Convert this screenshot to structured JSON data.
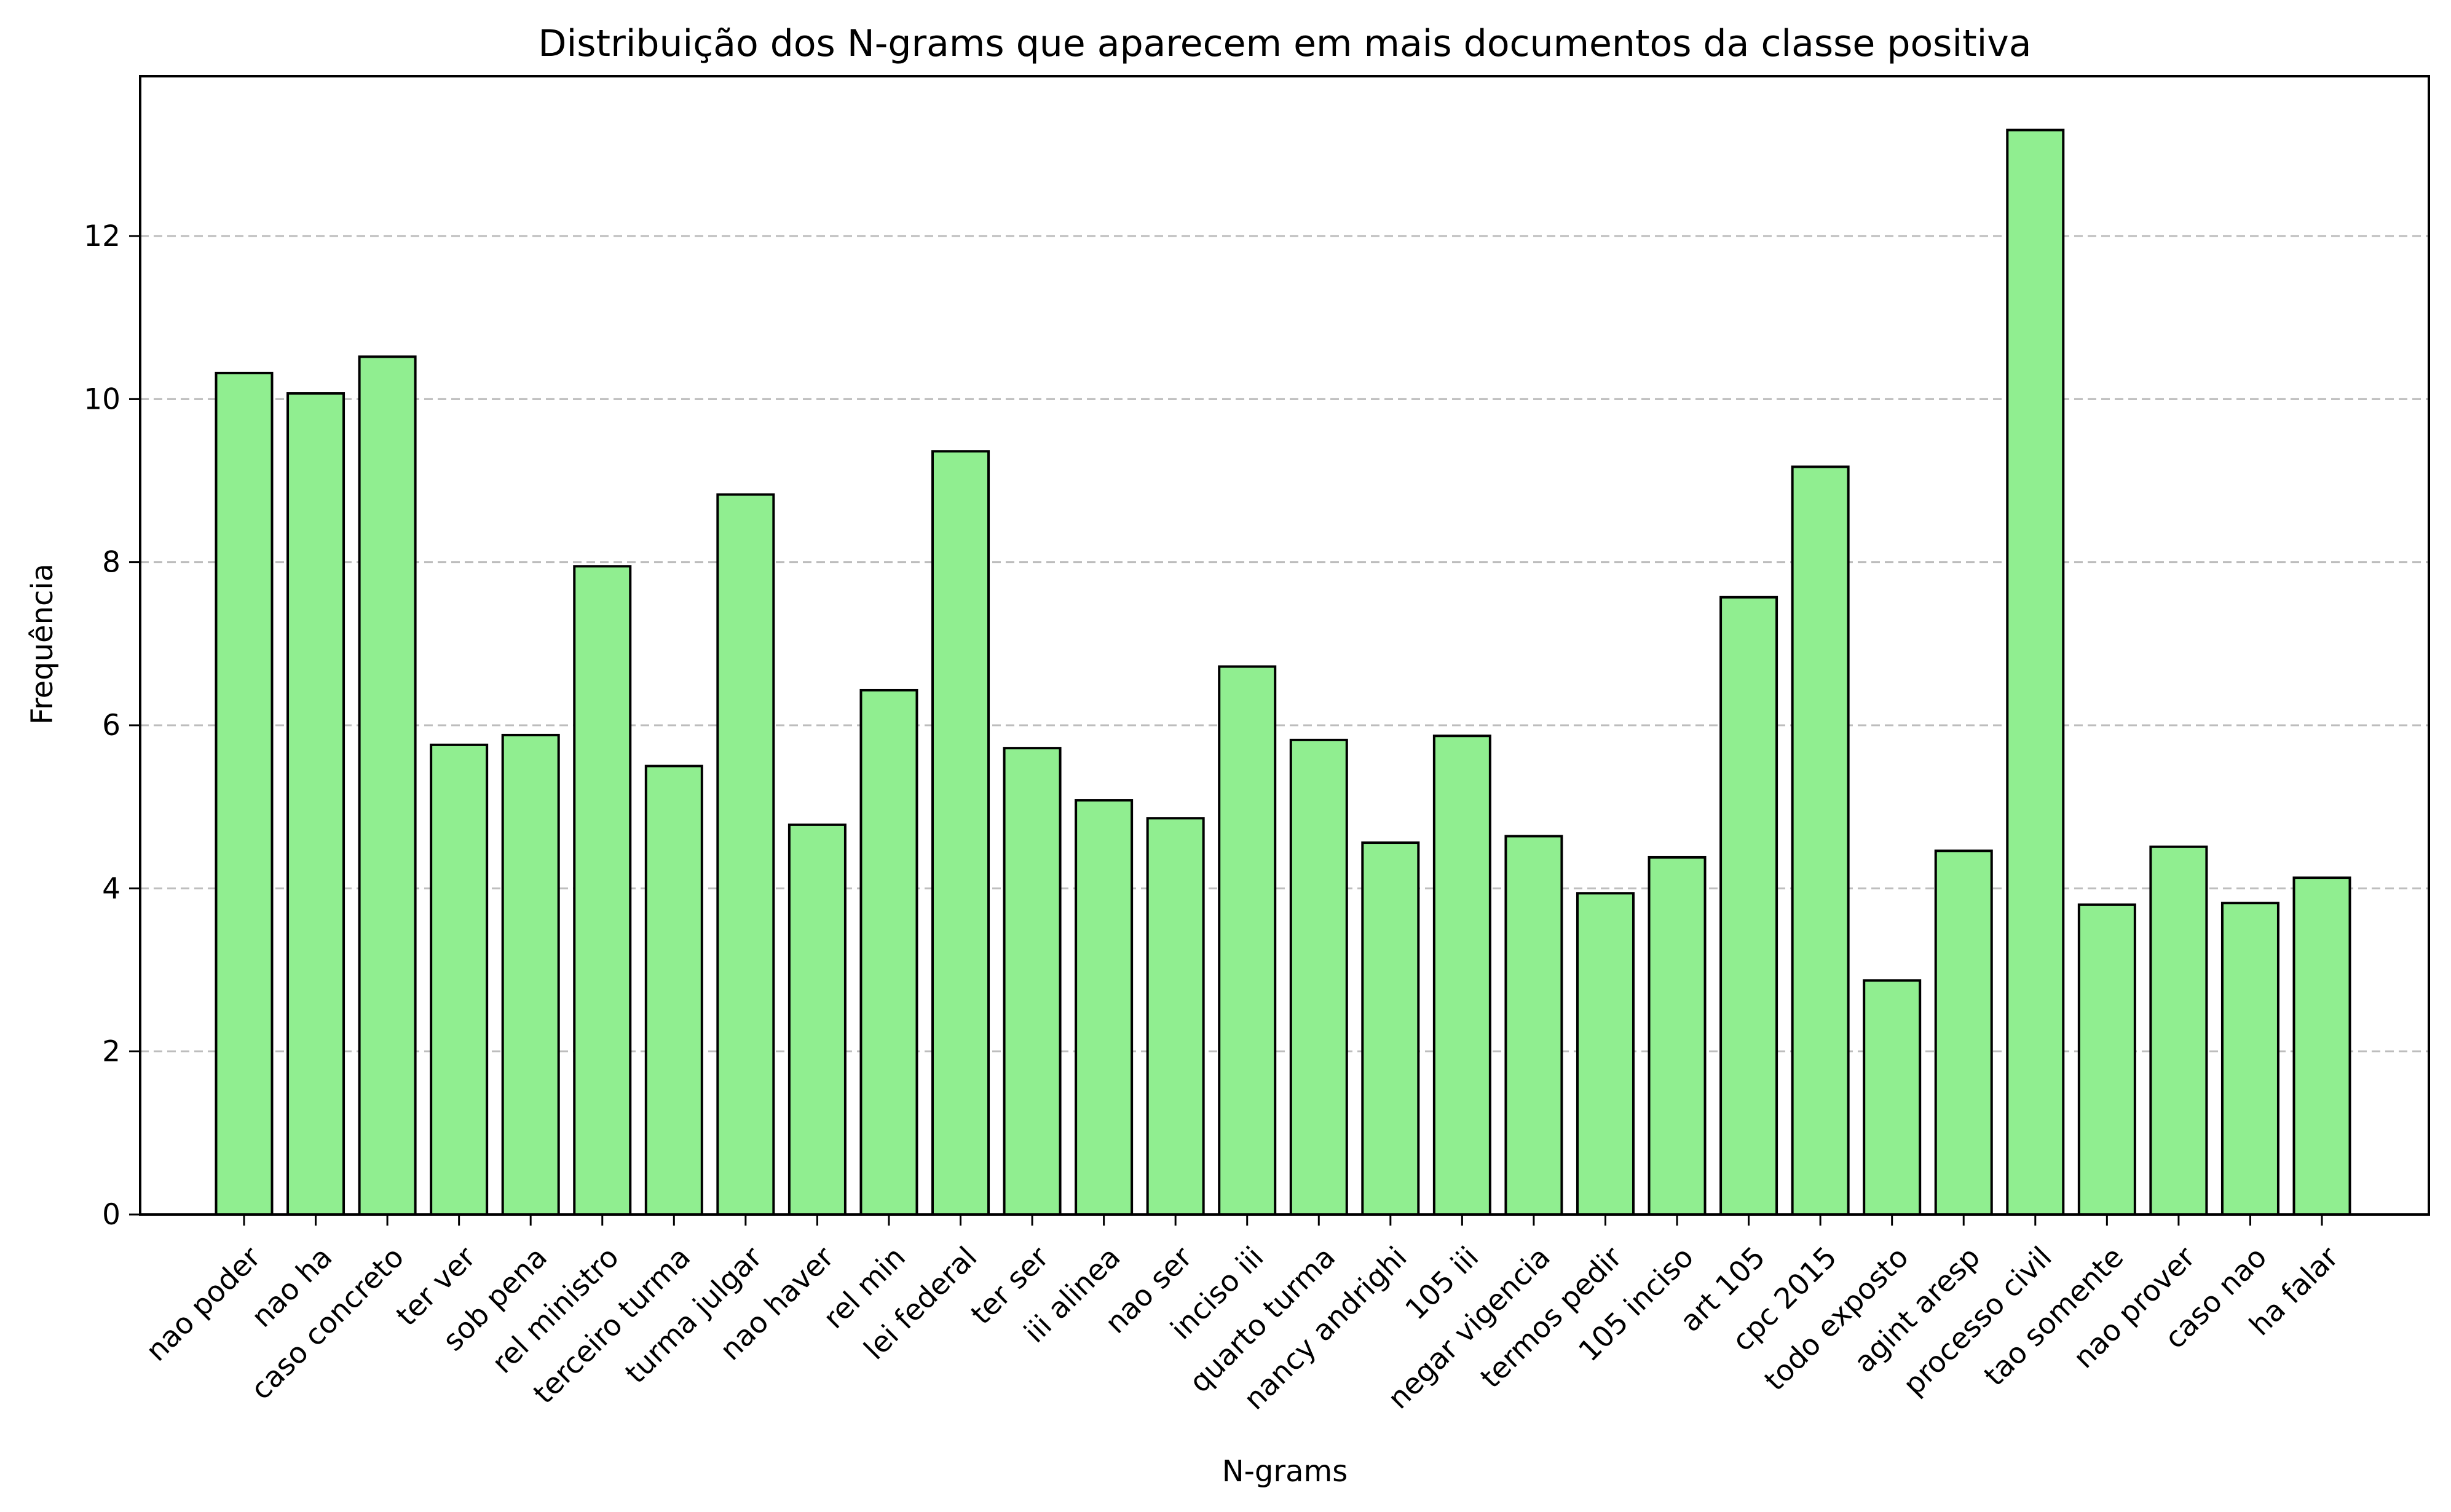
{
  "chart_data": {
    "type": "bar",
    "title": "Distribuição dos N-grams que aparecem em mais documentos da classe positiva",
    "xlabel": "N-grams",
    "ylabel": "Frequência",
    "categories": [
      "nao poder",
      "nao ha",
      "caso concreto",
      "ter ver",
      "sob pena",
      "rel ministro",
      "terceiro turma",
      "turma julgar",
      "nao haver",
      "rel min",
      "lei federal",
      "ter ser",
      "iii alinea",
      "nao ser",
      "inciso iii",
      "quarto turma",
      "nancy andrighi",
      "105 iii",
      "negar vigencia",
      "termos pedir",
      "105 inciso",
      "art 105",
      "cpc 2015",
      "todo exposto",
      "agint aresp",
      "processo civil",
      "tao somente",
      "nao prover",
      "caso nao",
      "ha falar"
    ],
    "values": [
      10.32,
      10.07,
      10.52,
      5.76,
      5.88,
      7.95,
      5.5,
      8.83,
      4.78,
      6.43,
      9.36,
      5.72,
      5.08,
      4.86,
      6.72,
      5.82,
      4.56,
      5.87,
      4.64,
      3.94,
      4.38,
      7.57,
      9.17,
      2.87,
      4.46,
      13.3,
      3.8,
      4.51,
      3.82,
      4.13
    ],
    "yticks": [
      "0",
      "2",
      "4",
      "6",
      "8",
      "10",
      "12"
    ],
    "ylim": [
      0,
      13.96
    ],
    "grid": "horizontal dashed",
    "bar_color": "#90ee90",
    "edge_color": "#000000"
  }
}
